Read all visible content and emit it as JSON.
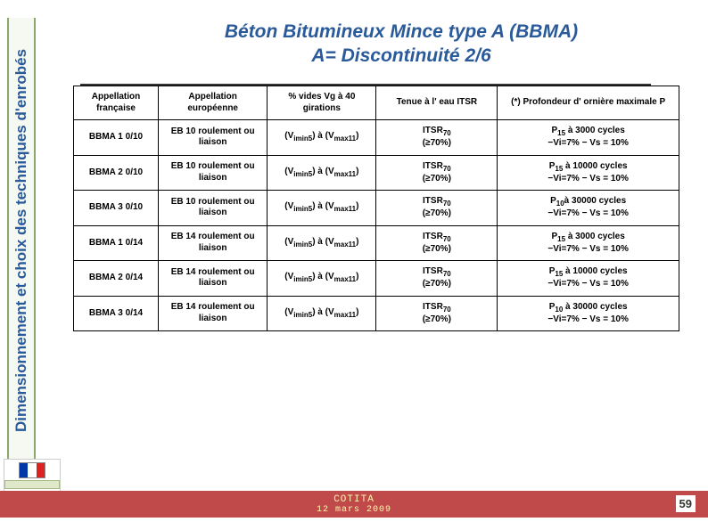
{
  "side_title": "Dimensionnement et choix des techniques d'enrobés",
  "title_line1": "Béton Bitumineux Mince type A (BBMA)",
  "title_line2": "A= Discontinuité 2/6",
  "table": {
    "headers": {
      "c1": "Appellation française",
      "c2": "Appellation européenne",
      "c3": "% vides Vg à 40 girations",
      "c4": "Tenue à l' eau ITSR",
      "c5": "(*) Profondeur d' ornière maximale P"
    },
    "rows": [
      {
        "c1": "BBMA 1 0/10",
        "c2": "EB 10 roulement ou liaison",
        "c3_html": "(V<span class='sub'>imin5</span>) à (V<span class='sub'>max11</span>)",
        "c4_html": "ITSR<span class='sub'>70</span><br>(≥70%)",
        "c5_html": "P<span class='sub'>15</span> à 3000 cycles<br>−Vi=7% − Vs = 10%"
      },
      {
        "c1": "BBMA 2 0/10",
        "c2": "EB 10 roulement ou liaison",
        "c3_html": "(V<span class='sub'>imin5</span>) à (V<span class='sub'>max11</span>)",
        "c4_html": "ITSR<span class='sub'>70</span><br>(≥70%)",
        "c5_html": "P<span class='sub'>15</span> à 10000 cycles<br>−Vi=7% − Vs = 10%"
      },
      {
        "c1": "BBMA 3 0/10",
        "c2": "EB 10 roulement ou liaison",
        "c3_html": "(V<span class='sub'>imin5</span>) à (V<span class='sub'>max11</span>)",
        "c4_html": "ITSR<span class='sub'>70</span><br>(≥70%)",
        "c5_html": "P<span class='sub'>10</span>à 30000 cycles<br>−Vi=7% − Vs = 10%"
      },
      {
        "c1": "BBMA 1 0/14",
        "c2": "EB 14 roulement ou liaison",
        "c3_html": "(V<span class='sub'>imin5</span>) à (V<span class='sub'>max11</span>)",
        "c4_html": "ITSR<span class='sub'>70</span><br>(≥70%)",
        "c5_html": "P<span class='sub'>15</span> à 3000 cycles<br>−Vi=7% − Vs = 10%"
      },
      {
        "c1": "BBMA 2 0/14",
        "c2": "EB 14 roulement ou liaison",
        "c3_html": "(V<span class='sub'>imin5</span>) à (V<span class='sub'>max11</span>)",
        "c4_html": "ITSR<span class='sub'>70</span><br>(≥70%)",
        "c5_html": "P<span class='sub'>15</span> à 10000 cycles<br>−Vi=7% − Vs = 10%"
      },
      {
        "c1": "BBMA 3 0/14",
        "c2": "EB 14 roulement ou liaison",
        "c3_html": "(V<span class='sub'>imin5</span>) à (V<span class='sub'>max11</span>)",
        "c4_html": "ITSR<span class='sub'>70</span><br>(≥70%)",
        "c5_html": "P<span class='sub'>10</span> à 30000 cycles<br>−Vi=7% − Vs = 10%"
      }
    ]
  },
  "footer": {
    "line1": "COTITA",
    "line2": "12 mars 2009"
  },
  "page_number": "59"
}
